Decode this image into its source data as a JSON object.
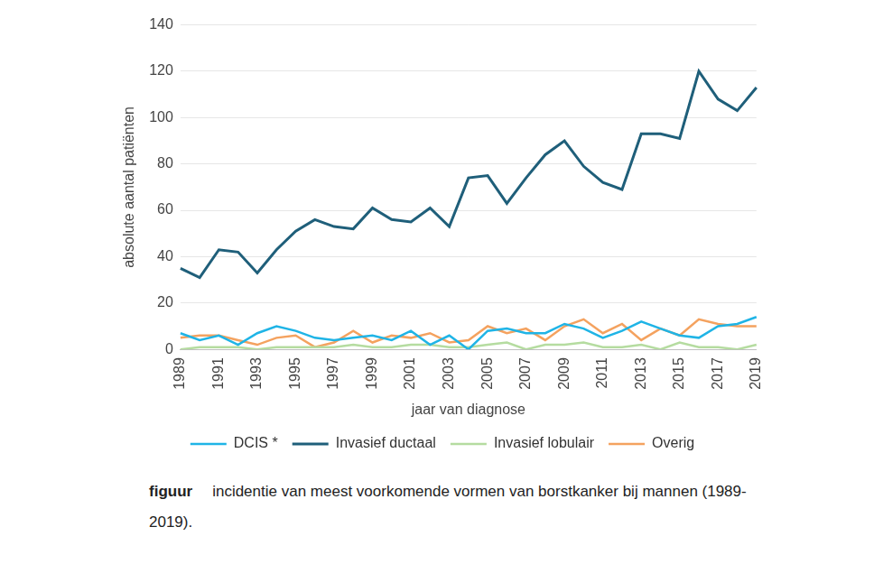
{
  "chart_data": {
    "type": "line",
    "x_label": "jaar van diagnose",
    "y_label": "absolute aantal patiënten",
    "caption": {
      "label": "figuur",
      "text": "incidentie van meest voorkomende vormen van borstkanker bij mannen (1989-2019)."
    },
    "categories": [
      "1989",
      null,
      "1991",
      null,
      "1993",
      null,
      "1995",
      null,
      "1997",
      null,
      "1999",
      null,
      "2001",
      null,
      "2003",
      null,
      "2005",
      null,
      "2007",
      null,
      "2009",
      null,
      "2011",
      null,
      "2013",
      null,
      "2015",
      null,
      "2017",
      null,
      "2019"
    ],
    "series": [
      {
        "name": "DCIS *",
        "color": "#1fb4e6",
        "values": [
          7,
          4,
          6,
          2,
          7,
          10,
          8,
          5,
          4,
          5,
          6,
          4,
          8,
          2,
          6,
          0,
          8,
          9,
          7,
          7,
          11,
          9,
          5,
          8,
          12,
          9,
          6,
          5,
          10,
          11,
          14
        ]
      },
      {
        "name": "Invasief ductaal",
        "color": "#1f5f7a",
        "values": [
          35,
          31,
          43,
          42,
          33,
          43,
          51,
          56,
          53,
          52,
          61,
          56,
          55,
          61,
          53,
          74,
          75,
          63,
          74,
          84,
          90,
          79,
          72,
          69,
          93,
          93,
          91,
          120,
          108,
          103,
          113
        ]
      },
      {
        "name": "Invasief lobulair",
        "color": "#b5dca0",
        "values": [
          0,
          1,
          1,
          1,
          0,
          1,
          1,
          1,
          1,
          2,
          1,
          1,
          2,
          2,
          1,
          1,
          2,
          3,
          0,
          2,
          2,
          3,
          1,
          1,
          2,
          0,
          3,
          1,
          1,
          0,
          2
        ]
      },
      {
        "name": "Overig",
        "color": "#f4a25f",
        "values": [
          5,
          6,
          6,
          4,
          2,
          5,
          6,
          1,
          3,
          8,
          3,
          6,
          5,
          7,
          3,
          4,
          10,
          7,
          9,
          4,
          10,
          13,
          7,
          11,
          4,
          9,
          6,
          13,
          11,
          10,
          10
        ]
      }
    ],
    "ylim": [
      0,
      140
    ],
    "yticks": [
      0,
      20,
      40,
      60,
      80,
      100,
      120,
      140
    ],
    "grid": true,
    "legend": "bottom",
    "marker": "none",
    "line_style": "solid"
  }
}
